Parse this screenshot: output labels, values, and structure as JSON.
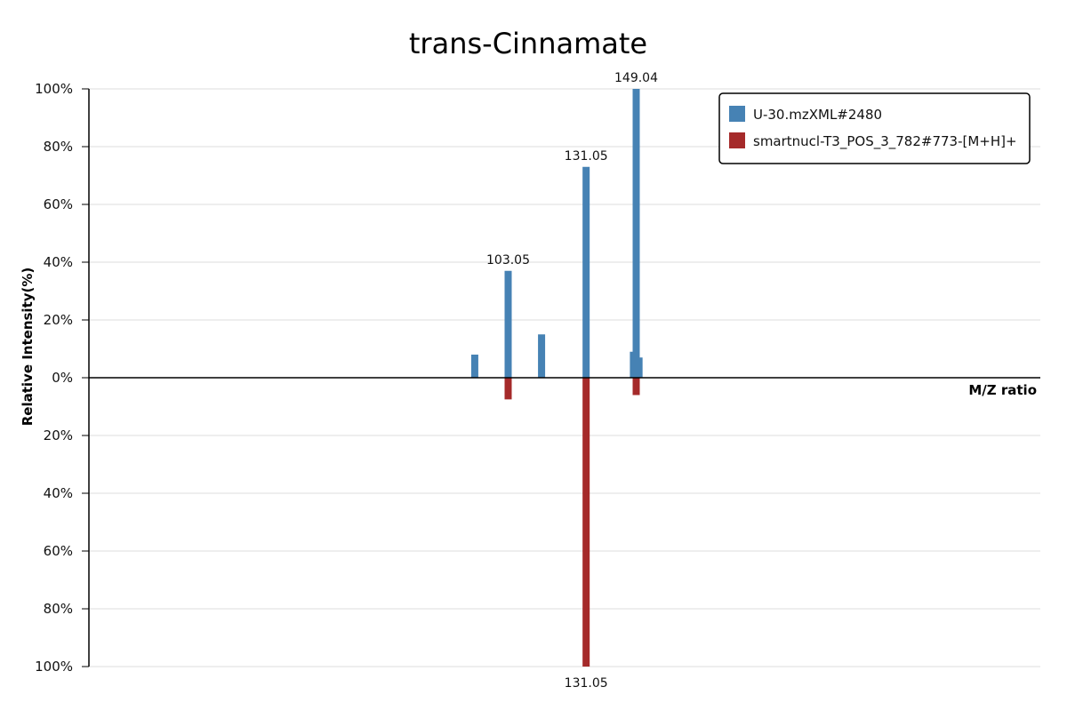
{
  "chart_data": {
    "type": "bar",
    "title": "trans-Cinnamate",
    "xlabel": "M/Z ratio",
    "ylabel": "Relative Intensity(%)",
    "ylim": [
      -100,
      100
    ],
    "yticks": [
      {
        "value": 100,
        "label": "100%"
      },
      {
        "value": 80,
        "label": "80%"
      },
      {
        "value": 60,
        "label": "60%"
      },
      {
        "value": 40,
        "label": "40%"
      },
      {
        "value": 20,
        "label": "20%"
      },
      {
        "value": 0,
        "label": "0%"
      },
      {
        "value": -20,
        "label": "20%"
      },
      {
        "value": -40,
        "label": "40%"
      },
      {
        "value": -60,
        "label": "60%"
      },
      {
        "value": -80,
        "label": "80%"
      },
      {
        "value": -100,
        "label": "100%"
      }
    ],
    "grid": true,
    "legend_position": "top-right",
    "series": [
      {
        "name": "U-30.mzXML#2480",
        "color": "#4682b4",
        "direction": "up",
        "peaks": [
          {
            "mz": 91.05,
            "intensity": 8
          },
          {
            "mz": 103.05,
            "intensity": 37,
            "label": "103.05"
          },
          {
            "mz": 115.05,
            "intensity": 15
          },
          {
            "mz": 131.05,
            "intensity": 73,
            "label": "131.05"
          },
          {
            "mz": 148.05,
            "intensity": 9
          },
          {
            "mz": 149.04,
            "intensity": 100,
            "label": "149.04"
          },
          {
            "mz": 150.05,
            "intensity": 7
          }
        ]
      },
      {
        "name": "smartnucl-T3_POS_3_782#773-[M+H]+",
        "color": "#a52a2a",
        "direction": "down",
        "peaks": [
          {
            "mz": 103.05,
            "intensity": 7.5
          },
          {
            "mz": 131.05,
            "intensity": 100,
            "label": "131.05"
          },
          {
            "mz": 149.04,
            "intensity": 6
          }
        ]
      }
    ]
  }
}
